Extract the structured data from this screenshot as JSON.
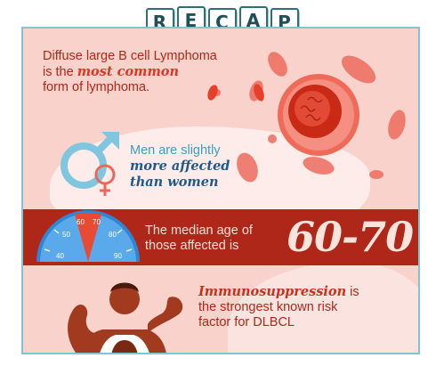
{
  "title_letters": [
    "R",
    "E",
    "C",
    "A",
    "P"
  ],
  "section1": {
    "line1": "Diffuse large B cell Lymphoma",
    "line2_pre": "is the ",
    "line2_em": "most common",
    "line3": "form of lymphoma."
  },
  "section2": {
    "line1": "Men are slightly",
    "line2_em": "more affected",
    "line3_em": "than women"
  },
  "section3": {
    "line1": "The median age of",
    "line2": "those affected is",
    "range": "60-70",
    "gauge_ticks": [
      "40",
      "50",
      "60",
      "70",
      "80",
      "90"
    ],
    "gauge_highlight": [
      "60",
      "70"
    ]
  },
  "section4": {
    "line1_em": "Immunosuppression",
    "line1_post": " is",
    "line2": "the strongest known risk",
    "line3": "factor for DLBCL"
  },
  "icons": [
    "lymphoma-cell-icon",
    "red-blood-cell-icon",
    "male-symbol-icon",
    "female-symbol-icon",
    "age-gauge-icon",
    "flexing-man-icon"
  ],
  "colors": {
    "background": "#f8d2cb",
    "accent_red": "#ae2719",
    "border": "#7ec7d2",
    "blue": "#3aa0c0"
  }
}
